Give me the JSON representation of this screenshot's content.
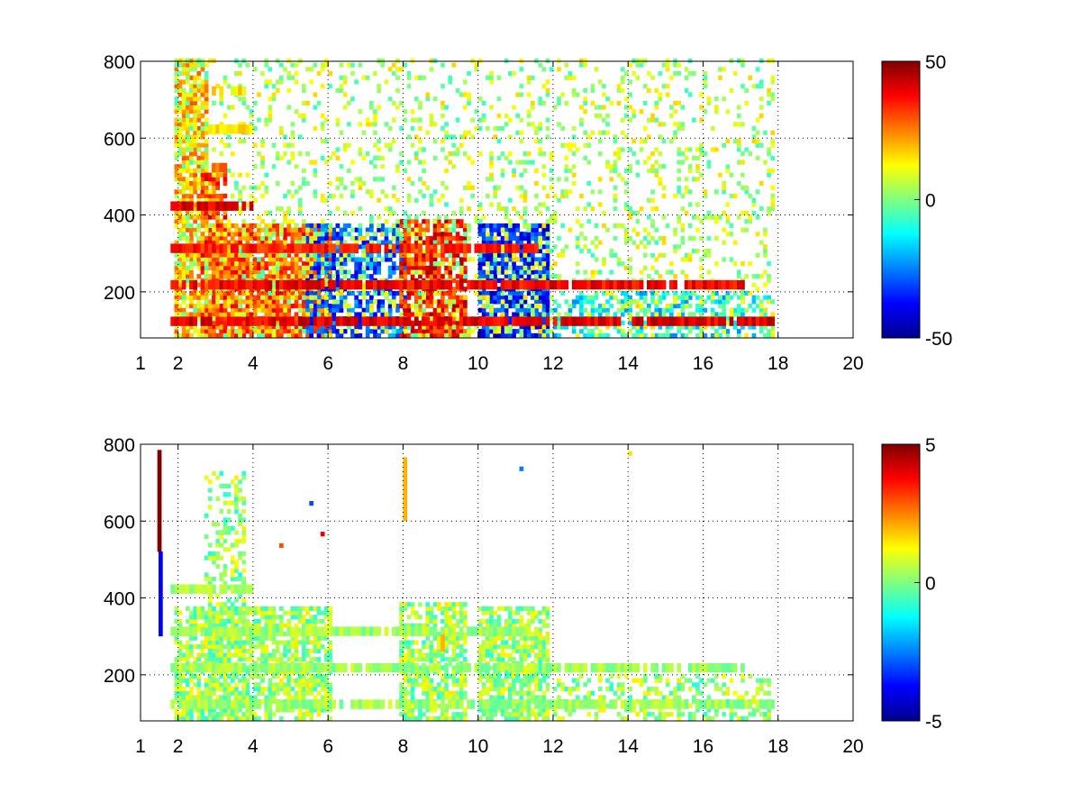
{
  "chart_data": [
    {
      "type": "heatmap",
      "title": "",
      "xlabel": "",
      "ylabel": "",
      "xlim": [
        1,
        20
      ],
      "ylim": [
        80,
        800
      ],
      "x_ticks": [
        "1",
        "2",
        "4",
        "6",
        "8",
        "10",
        "12",
        "14",
        "16",
        "18",
        "20"
      ],
      "y_ticks": [
        "200",
        "400",
        "600",
        "800"
      ],
      "colorbar": {
        "min": -50,
        "max": 50,
        "ticks": [
          "50",
          "0",
          "-50"
        ],
        "colormap": "jet"
      },
      "grid": true,
      "features": [
        {
          "x_range": [
            1.9,
            2.8
          ],
          "y_range": [
            80,
            800
          ],
          "value": 18,
          "density": 0.7
        },
        {
          "x_range": [
            2.6,
            3.3
          ],
          "y_range": [
            80,
            520
          ],
          "value": 30,
          "density": 0.75
        },
        {
          "x_range": [
            2.8,
            6.0
          ],
          "y_range": [
            80,
            370
          ],
          "value": 28,
          "density": 0.85
        },
        {
          "x_range": [
            5.4,
            8.0
          ],
          "y_range": [
            80,
            370
          ],
          "value": -30,
          "density": 0.6
        },
        {
          "x_range": [
            7.9,
            9.6
          ],
          "y_range": [
            80,
            380
          ],
          "value": 35,
          "density": 0.75
        },
        {
          "x_range": [
            10.0,
            11.8
          ],
          "y_range": [
            80,
            370
          ],
          "value": -35,
          "density": 0.8
        },
        {
          "x_range": [
            12.0,
            17.8
          ],
          "y_range": [
            80,
            200
          ],
          "value": -12,
          "density": 0.45
        },
        {
          "x_range": [
            1.9,
            17.8
          ],
          "y_range": [
            80,
            800
          ],
          "value": 5,
          "density": 0.18
        }
      ],
      "bands": [
        {
          "y": 100,
          "x_range": [
            1.8,
            17.8
          ],
          "value": 40
        },
        {
          "y": 195,
          "x_range": [
            1.8,
            17.0
          ],
          "value": 38
        },
        {
          "y": 290,
          "x_range": [
            1.8,
            11.5
          ],
          "value": 35
        },
        {
          "y": 400,
          "x_range": [
            1.8,
            4.0
          ],
          "value": 40
        },
        {
          "y": 500,
          "x_range": [
            2.8,
            3.3
          ],
          "value": 25
        },
        {
          "y": 600,
          "x_range": [
            2.8,
            4.0
          ],
          "value": 15
        },
        {
          "y": 700,
          "x_range": [
            2.8,
            3.8
          ],
          "value": 15
        }
      ]
    },
    {
      "type": "heatmap",
      "title": "",
      "xlabel": "",
      "ylabel": "",
      "xlim": [
        1,
        20
      ],
      "ylim": [
        80,
        800
      ],
      "x_ticks": [
        "1",
        "2",
        "4",
        "6",
        "8",
        "10",
        "12",
        "14",
        "16",
        "18",
        "20"
      ],
      "y_ticks": [
        "200",
        "400",
        "600",
        "800"
      ],
      "colorbar": {
        "min": -5,
        "max": 5,
        "ticks": [
          "5",
          "0",
          "-5"
        ],
        "colormap": "jet"
      },
      "grid": true,
      "features": [
        {
          "x_range": [
            1.9,
            6.0
          ],
          "y_range": [
            80,
            370
          ],
          "value": 0.3,
          "density": 0.7
        },
        {
          "x_range": [
            2.7,
            3.8
          ],
          "y_range": [
            80,
            720
          ],
          "value": 0.2,
          "density": 0.35
        },
        {
          "x_range": [
            7.9,
            9.6
          ],
          "y_range": [
            80,
            380
          ],
          "value": 0.3,
          "density": 0.7
        },
        {
          "x_range": [
            10.0,
            11.8
          ],
          "y_range": [
            80,
            370
          ],
          "value": 0.3,
          "density": 0.7
        },
        {
          "x_range": [
            12.0,
            17.8
          ],
          "y_range": [
            80,
            200
          ],
          "value": 0.3,
          "density": 0.4
        }
      ],
      "bands": [
        {
          "y": 100,
          "x_range": [
            1.8,
            17.8
          ],
          "value": 0.3
        },
        {
          "y": 195,
          "x_range": [
            1.8,
            17.0
          ],
          "value": 0.3
        },
        {
          "y": 290,
          "x_range": [
            1.8,
            11.5
          ],
          "value": 0.3
        },
        {
          "y": 400,
          "x_range": [
            1.8,
            4.0
          ],
          "value": 0.3
        }
      ],
      "outliers": [
        {
          "x": 1.45,
          "y_range": [
            520,
            780
          ],
          "value": 5
        },
        {
          "x": 1.48,
          "y_range": [
            300,
            520
          ],
          "value": -4
        },
        {
          "x": 8.0,
          "y_range": [
            600,
            760
          ],
          "value": 2
        },
        {
          "x": 9.0,
          "y_range": [
            260,
            300
          ],
          "value": 2
        },
        {
          "x": 11.1,
          "y": 730,
          "value": -2.5
        },
        {
          "x": 14.0,
          "y": 770,
          "value": 1.5
        },
        {
          "x": 4.7,
          "y": 530,
          "value": 3
        },
        {
          "x": 5.8,
          "y": 560,
          "value": 4
        },
        {
          "x": 5.5,
          "y": 640,
          "value": -3
        }
      ]
    }
  ]
}
